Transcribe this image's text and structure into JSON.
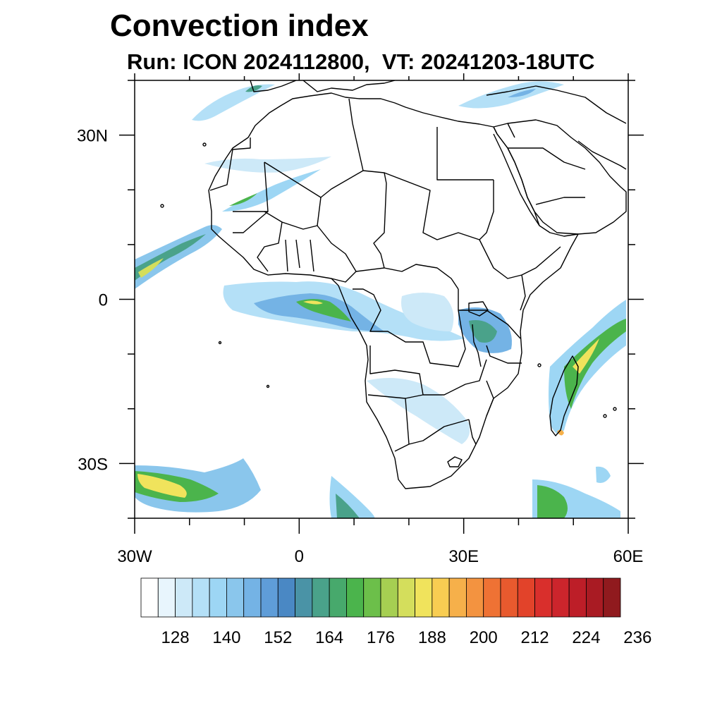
{
  "title": "Convection index",
  "subtitle": "Run: ICON 2024112800,  VT: 20241203-18UTC",
  "map": {
    "lon_range": [
      -30,
      60
    ],
    "lat_range": [
      -40,
      40
    ],
    "lat_ticks": [
      {
        "value": 30,
        "label": "30N"
      },
      {
        "value": 0,
        "label": "0"
      },
      {
        "value": -30,
        "label": "30S"
      }
    ],
    "lon_ticks": [
      {
        "value": -30,
        "label": "30W"
      },
      {
        "value": 0,
        "label": "0"
      },
      {
        "value": 30,
        "label": "30E"
      },
      {
        "value": 60,
        "label": "60E"
      }
    ],
    "coastline_color": "#000000"
  },
  "colorbar": {
    "colors": [
      "#ffffff",
      "#e8f5fd",
      "#cde9f8",
      "#b4e0f7",
      "#9dd6f4",
      "#8ac6ec",
      "#74b3e5",
      "#5f9dd8",
      "#4a88c4",
      "#4a93a6",
      "#4aa28a",
      "#47a96c",
      "#4bb44c",
      "#6cbf4a",
      "#a6cf52",
      "#d4de5c",
      "#f0e35c",
      "#f8cd52",
      "#f6b04a",
      "#f39340",
      "#ef7234",
      "#e85a2e",
      "#e2432a",
      "#d92f2c",
      "#cc252c",
      "#bd1e28",
      "#a91b23",
      "#901a1e"
    ],
    "labels": [
      "128",
      "140",
      "152",
      "164",
      "176",
      "188",
      "200",
      "212",
      "224",
      "236"
    ]
  }
}
